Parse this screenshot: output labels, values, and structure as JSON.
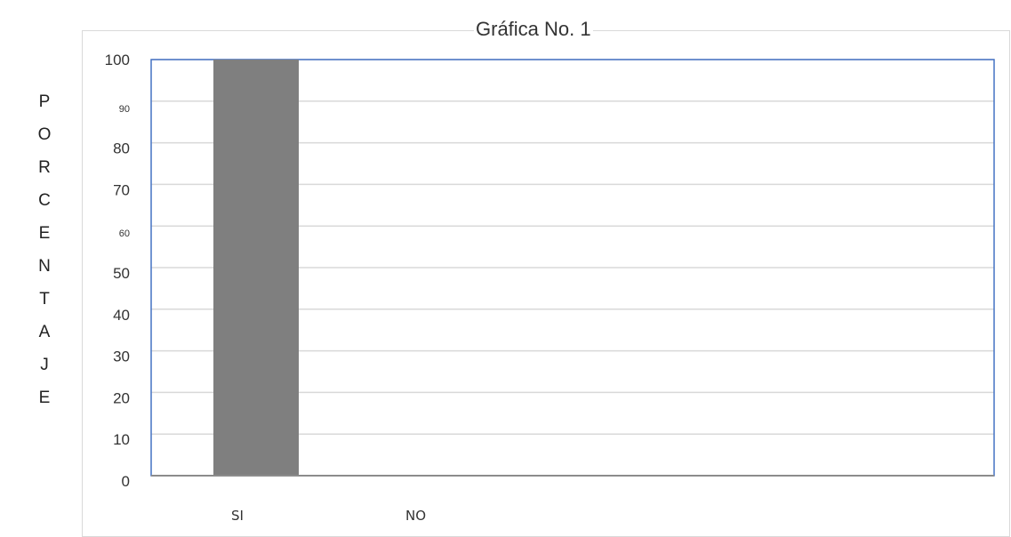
{
  "chart_data": {
    "type": "bar",
    "title": "Gráfica No. 1",
    "ylabel": "PORCENTAJE",
    "xlabel": "",
    "categories": [
      "SI",
      "NO"
    ],
    "values": [
      100,
      0
    ],
    "ylim": [
      0,
      100
    ],
    "yticks": [
      "100",
      "90",
      "80",
      "70",
      "60",
      "50",
      "40",
      "30",
      "20",
      "10",
      "0"
    ],
    "ytick_sizes": [
      "normal",
      "small",
      "normal",
      "normal",
      "small",
      "normal",
      "normal",
      "normal",
      "normal",
      "normal",
      "normal"
    ],
    "grid": true,
    "legend": "none",
    "bar_color": "#7f7f7f",
    "axis_color": "#4472c4",
    "grid_color": "#d9d9d9"
  }
}
